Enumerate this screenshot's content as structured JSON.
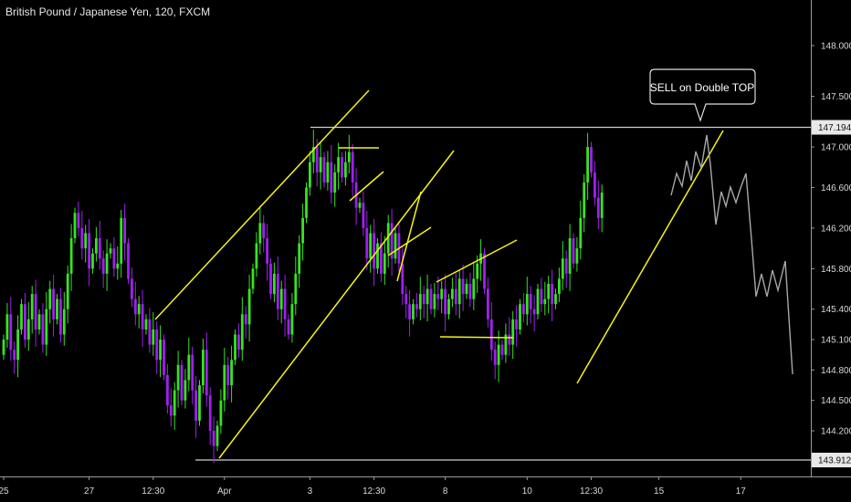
{
  "header": {
    "title": "British Pound / Japanese Yen, 120, FXCM"
  },
  "chart_data": {
    "type": "candlestick",
    "y_axis": {
      "ticks": [
        "148.000",
        "147.500",
        "147.000",
        "146.600",
        "146.200",
        "145.800",
        "145.400",
        "145.100",
        "144.800",
        "144.500",
        "144.200"
      ],
      "ylim": [
        143.75,
        148.45
      ]
    },
    "x_axis": {
      "ticks": [
        {
          "label": "25",
          "idx": 0
        },
        {
          "label": "27",
          "idx": 24
        },
        {
          "label": "12:30",
          "idx": 42
        },
        {
          "label": "Apr",
          "idx": 62
        },
        {
          "label": "3",
          "idx": 86
        },
        {
          "label": "12:30",
          "idx": 104
        },
        {
          "label": "8",
          "idx": 124
        },
        {
          "label": "10",
          "idx": 147
        },
        {
          "label": "12:30",
          "idx": 165
        },
        {
          "label": "15",
          "idx": 184
        },
        {
          "label": "17",
          "idx": 207
        }
      ]
    },
    "horizontal_levels": [
      {
        "value": 147.194,
        "label": "147.194"
      },
      {
        "value": 143.912,
        "label": "143.912"
      }
    ],
    "callout": {
      "text": "SELL on Double TOP"
    },
    "closes": [
      145.1,
      145.35,
      145.0,
      144.9,
      145.2,
      145.45,
      145.1,
      145.3,
      145.55,
      145.2,
      145.35,
      145.05,
      145.4,
      145.6,
      145.3,
      145.5,
      145.15,
      145.4,
      145.75,
      146.1,
      146.35,
      146.2,
      146.0,
      146.15,
      145.8,
      145.95,
      146.1,
      145.9,
      145.75,
      145.95,
      146.0,
      145.8,
      145.85,
      146.3,
      146.05,
      145.7,
      145.5,
      145.35,
      145.45,
      145.2,
      145.3,
      145.05,
      145.2,
      144.9,
      145.1,
      144.75,
      144.45,
      144.35,
      144.6,
      144.85,
      144.5,
      144.7,
      144.95,
      144.6,
      144.3,
      144.65,
      145.0,
      144.55,
      144.2,
      144.05,
      144.25,
      144.5,
      144.85,
      144.65,
      144.9,
      145.15,
      145.0,
      145.35,
      145.25,
      145.6,
      145.8,
      146.05,
      146.25,
      146.1,
      145.85,
      145.55,
      145.75,
      145.4,
      145.6,
      145.3,
      145.15,
      145.45,
      145.75,
      146.05,
      146.3,
      146.6,
      146.85,
      147.0,
      146.75,
      146.9,
      146.65,
      146.85,
      146.55,
      146.75,
      146.9,
      146.7,
      146.85,
      146.95,
      146.65,
      146.4,
      146.45,
      146.2,
      145.9,
      146.15,
      145.8,
      146.05,
      145.75,
      145.95,
      146.25,
      145.9,
      146.15,
      145.85,
      145.55,
      145.45,
      145.3,
      145.45,
      145.4,
      145.55,
      145.45,
      145.6,
      145.4,
      145.55,
      145.5,
      145.6,
      145.35,
      145.5,
      145.6,
      145.45,
      145.7,
      145.55,
      145.65,
      145.5,
      145.7,
      145.85,
      145.95,
      145.6,
      145.3,
      145.0,
      144.85,
      145.05,
      144.95,
      145.15,
      145.05,
      145.3,
      145.2,
      145.45,
      145.35,
      145.55,
      145.4,
      145.35,
      145.6,
      145.45,
      145.5,
      145.65,
      145.45,
      145.55,
      145.7,
      145.9,
      145.75,
      146.1,
      145.85,
      146.0,
      146.3,
      146.65,
      147.0,
      146.75,
      146.5,
      146.3,
      146.55
    ]
  }
}
